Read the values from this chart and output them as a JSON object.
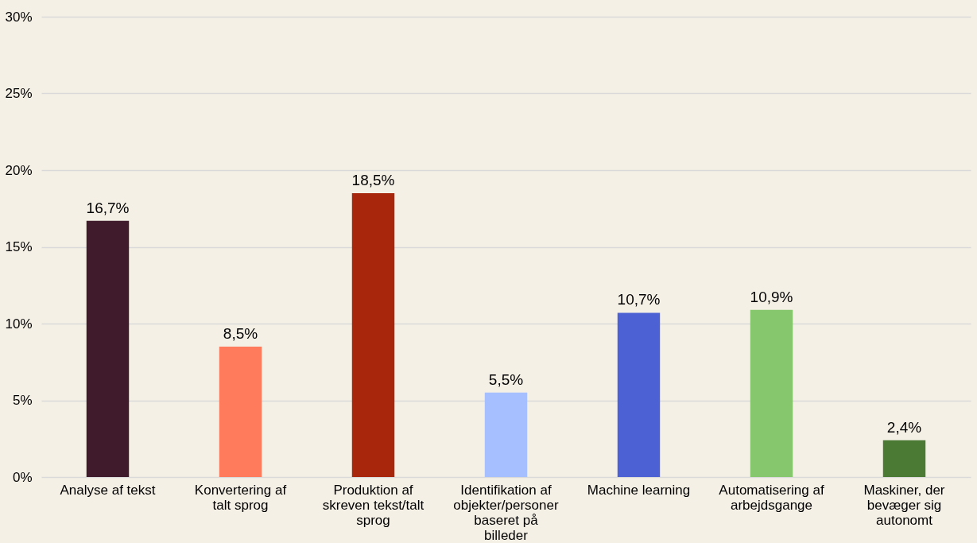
{
  "chart_data": {
    "type": "bar",
    "categories": [
      "Analyse af tekst",
      "Konvertering af talt sprog",
      "Produktion af skreven tekst/talt sprog",
      "Identifikation af objekter/personer baseret på billeder",
      "Machine learning",
      "Automatisering af arbejdsgange",
      "Maskiner, der bevæger sig autonomt"
    ],
    "values": [
      16.7,
      8.5,
      18.5,
      5.5,
      10.7,
      10.9,
      2.4
    ],
    "colors": [
      "#3f1b2b",
      "#ff7b5c",
      "#a8270c",
      "#a6c0ff",
      "#4b61d4",
      "#86c66c",
      "#4b7a34"
    ],
    "value_labels": [
      "16,7%",
      "8,5%",
      "18,5%",
      "5,5%",
      "10,7%",
      "10,9%",
      "2,4%"
    ],
    "ylim": [
      0,
      30
    ],
    "yticks": [
      {
        "value": 0,
        "label": "0%"
      },
      {
        "value": 5,
        "label": "5%"
      },
      {
        "value": 10,
        "label": "10%"
      },
      {
        "value": 15,
        "label": "15%"
      },
      {
        "value": 20,
        "label": "20%"
      },
      {
        "value": 25,
        "label": "25%"
      },
      {
        "value": 30,
        "label": "30%"
      }
    ],
    "grid": "y"
  }
}
